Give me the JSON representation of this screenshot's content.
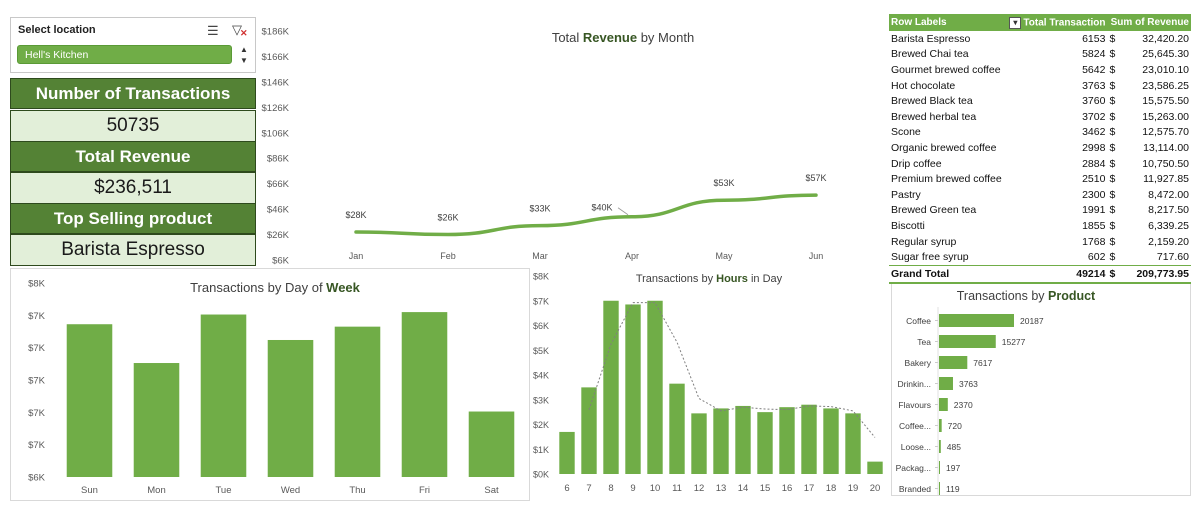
{
  "slicer": {
    "title": "Select location",
    "multi_select_icon": "multi-select-icon",
    "clear_filter_icon": "clear-filter-icon",
    "selected_item": "Hell's Kitchen"
  },
  "kpis": {
    "transactions_label": "Number of Transactions",
    "transactions_value": "50735",
    "revenue_label": "Total Revenue",
    "revenue_value": "$236,511",
    "top_label": "Top Selling product",
    "top_value": "Barista Espresso"
  },
  "colors": {
    "accent": "#70ad47",
    "dark_green": "#548235",
    "light_green": "#e2efd9"
  },
  "pivot": {
    "headers": [
      "Row Labels",
      "Total Transaction",
      "Sum of Revenue"
    ],
    "rows": [
      {
        "label": "Barista Espresso",
        "transactions": "6153",
        "currency": "$",
        "revenue": "32,420.20"
      },
      {
        "label": "Brewed Chai tea",
        "transactions": "5824",
        "currency": "$",
        "revenue": "25,645.30"
      },
      {
        "label": "Gourmet brewed coffee",
        "transactions": "5642",
        "currency": "$",
        "revenue": "23,010.10"
      },
      {
        "label": "Hot chocolate",
        "transactions": "3763",
        "currency": "$",
        "revenue": "23,586.25"
      },
      {
        "label": "Brewed Black tea",
        "transactions": "3760",
        "currency": "$",
        "revenue": "15,575.50"
      },
      {
        "label": "Brewed herbal tea",
        "transactions": "3702",
        "currency": "$",
        "revenue": "15,263.00"
      },
      {
        "label": "Scone",
        "transactions": "3462",
        "currency": "$",
        "revenue": "12,575.70"
      },
      {
        "label": "Organic brewed coffee",
        "transactions": "2998",
        "currency": "$",
        "revenue": "13,114.00"
      },
      {
        "label": "Drip coffee",
        "transactions": "2884",
        "currency": "$",
        "revenue": "10,750.50"
      },
      {
        "label": "Premium brewed coffee",
        "transactions": "2510",
        "currency": "$",
        "revenue": "11,927.85"
      },
      {
        "label": "Pastry",
        "transactions": "2300",
        "currency": "$",
        "revenue": "8,472.00"
      },
      {
        "label": "Brewed Green tea",
        "transactions": "1991",
        "currency": "$",
        "revenue": "8,217.50"
      },
      {
        "label": "Biscotti",
        "transactions": "1855",
        "currency": "$",
        "revenue": "6,339.25"
      },
      {
        "label": "Regular syrup",
        "transactions": "1768",
        "currency": "$",
        "revenue": "2,159.20"
      },
      {
        "label": "Sugar free syrup",
        "transactions": "602",
        "currency": "$",
        "revenue": "717.60"
      }
    ],
    "total": {
      "label": "Grand Total",
      "transactions": "49214",
      "currency": "$",
      "revenue": "209,773.95"
    }
  },
  "chart_data": [
    {
      "id": "revenue",
      "type": "line",
      "title": [
        {
          "t": "Total ",
          "b": false
        },
        {
          "t": "Revenue",
          "b": true
        },
        {
          "t": " by Month",
          "b": false
        }
      ],
      "categories": [
        "Jan",
        "Feb",
        "Mar",
        "Apr",
        "May",
        "Jun"
      ],
      "values": [
        28,
        26,
        33,
        40,
        53,
        57
      ],
      "data_labels": [
        "$28K",
        "$26K",
        "$33K",
        "$40K",
        "$53K",
        "$57K"
      ],
      "y_ticks": [
        "$6K",
        "$26K",
        "$46K",
        "$66K",
        "$86K",
        "$106K",
        "$126K",
        "$146K",
        "$166K",
        "$186K"
      ],
      "ylim": [
        6,
        186
      ],
      "grid": false
    },
    {
      "id": "weekday",
      "type": "bar",
      "title": [
        {
          "t": "Transactions by Day of ",
          "b": false
        },
        {
          "t": "Week",
          "b": true
        }
      ],
      "categories": [
        "Sun",
        "Mon",
        "Tue",
        "Wed",
        "Thu",
        "Fri",
        "Sat"
      ],
      "values": [
        7.56,
        7.24,
        7.64,
        7.43,
        7.54,
        7.66,
        6.84
      ],
      "y_ticks": [
        "$6K",
        "$7K",
        "$7K",
        "$7K",
        "$7K",
        "$7K",
        "$8K"
      ],
      "ylim": [
        6.3,
        7.9
      ],
      "grid": false
    },
    {
      "id": "hours",
      "type": "bar",
      "title": [
        {
          "t": "Transactions by ",
          "b": false
        },
        {
          "t": "Hours",
          "b": true
        },
        {
          "t": " in Day",
          "b": false
        }
      ],
      "categories": [
        "6",
        "7",
        "8",
        "9",
        "10",
        "11",
        "12",
        "13",
        "14",
        "15",
        "16",
        "17",
        "18",
        "19",
        "20"
      ],
      "values": [
        1.7,
        3.5,
        7.0,
        6.85,
        7.0,
        3.65,
        2.45,
        2.65,
        2.75,
        2.5,
        2.7,
        2.8,
        2.65,
        2.45,
        0.5
      ],
      "trendline": "dotted",
      "y_ticks": [
        "$0K",
        "$1K",
        "$2K",
        "$3K",
        "$4K",
        "$5K",
        "$6K",
        "$7K",
        "$8K"
      ],
      "ylim": [
        0,
        8
      ],
      "grid": false
    },
    {
      "id": "product",
      "type": "bar",
      "orientation": "horizontal",
      "title": [
        {
          "t": "Transactions by ",
          "b": false
        },
        {
          "t": "Product",
          "b": true
        }
      ],
      "categories": [
        "Coffee",
        "Tea",
        "Bakery",
        "Drinkin...",
        "Flavours",
        "Coffee...",
        "Loose...",
        "Packag...",
        "Branded"
      ],
      "values": [
        20187,
        15277,
        7617,
        3763,
        2370,
        720,
        485,
        197,
        119
      ],
      "data_labels": [
        "20187",
        "15277",
        "7617",
        "3763",
        "2370",
        "720",
        "485",
        "197",
        "119"
      ],
      "grid": false
    }
  ]
}
